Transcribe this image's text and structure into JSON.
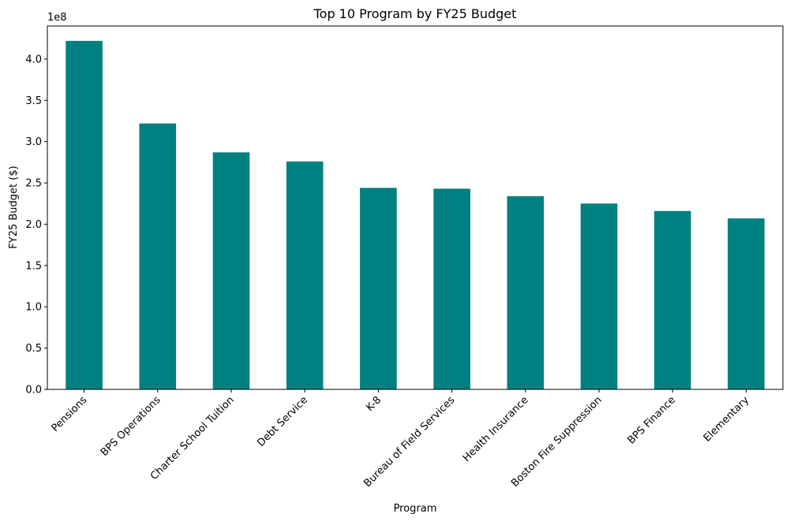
{
  "chart_data": {
    "type": "bar",
    "title": "Top 10 Program by FY25 Budget",
    "xlabel": "Program",
    "ylabel": "FY25 Budget ($)",
    "y_offset_label": "1e8",
    "categories": [
      "Pensions",
      "BPS Operations",
      "Charter School Tuition",
      "Debt Service",
      "K-8",
      "Bureau of Field Services",
      "Health Insurance",
      "Boston Fire Suppression",
      "BPS Finance",
      "Elementary"
    ],
    "values": [
      422000000,
      322000000,
      287000000,
      276000000,
      244000000,
      243000000,
      234000000,
      225000000,
      216000000,
      207000000
    ],
    "ylim": [
      0,
      440000000
    ],
    "yticks": [
      0,
      50000000,
      100000000,
      150000000,
      200000000,
      250000000,
      300000000,
      350000000,
      400000000
    ],
    "ytick_labels": [
      "0.0",
      "0.5",
      "1.0",
      "1.5",
      "2.0",
      "2.5",
      "3.0",
      "3.5",
      "4.0"
    ],
    "bar_color": "#008080",
    "grid": false,
    "legend": "none",
    "xtick_rotation_deg": 45
  }
}
